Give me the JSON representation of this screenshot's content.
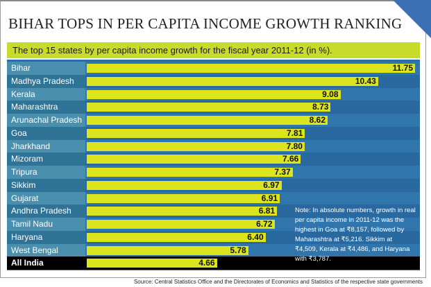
{
  "chart_data": {
    "type": "bar",
    "orientation": "horizontal",
    "title": "BIHAR TOPS IN PER CAPITA INCOME GROWTH RANKING",
    "subtitle": "The top 15 states by per capita income growth for the fiscal year 2011-12 (in %).",
    "categories": [
      "Bihar",
      "Madhya Pradesh",
      "Kerala",
      "Maharashtra",
      "Arunachal Pradesh",
      "Goa",
      "Jharkhand",
      "Mizoram",
      "Tripura",
      "Sikkim",
      "Gujarat",
      "Andhra Pradesh",
      "Tamil Nadu",
      "Haryana",
      "West Bengal",
      "All India"
    ],
    "values": [
      11.75,
      10.43,
      9.08,
      8.73,
      8.62,
      7.81,
      7.8,
      7.66,
      7.37,
      6.97,
      6.91,
      6.81,
      6.72,
      6.4,
      5.78,
      4.66
    ],
    "value_labels": [
      "11.75",
      "10.43",
      "9.08",
      "8.73",
      "8.62",
      "7.81",
      "7.80",
      "7.66",
      "7.37",
      "6.97",
      "6.91",
      "6.81",
      "6.72",
      "6.40",
      "5.78",
      "4.66"
    ],
    "xlim": [
      0,
      11.75
    ],
    "grid": false,
    "colors": {
      "bar": "#dbe41c",
      "background": "#2c6ea6",
      "highlight_row": "#000000",
      "subtitle_band": "#c7dc2a"
    },
    "note": "Note: In absolute numbers, growth in real per capita income in 2011-12 was the highest in Goa at ₹8,157, followed by Maharashtra at ₹5,216. Sikkim at ₹4,509, Kerala at ₹4,486, and Haryana with ₹3,787.",
    "source": "Source: Central Statistics Office and the Directorates of Economics and Statistics of the respective state governments"
  }
}
